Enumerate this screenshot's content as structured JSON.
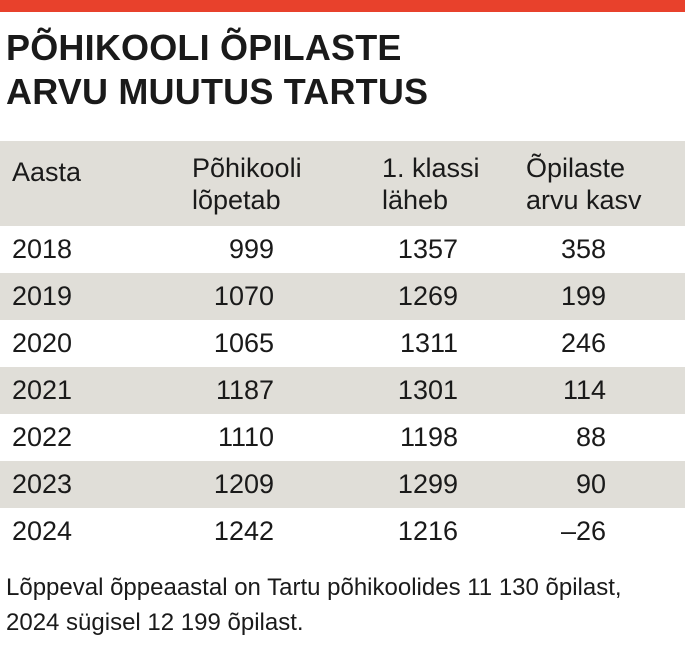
{
  "title": {
    "line1": "PÕHIKOOLI ÕPILASTE",
    "line2": "ARVU MUUTUS TARTUS"
  },
  "colors": {
    "accent_bar": "#e8412c",
    "row_shade": "#e0ded8"
  },
  "chart_data": {
    "type": "table",
    "columns": [
      {
        "line1": "Aasta",
        "line2": ""
      },
      {
        "line1": "Põhikooli",
        "line2": "lõpetab"
      },
      {
        "line1": "1. klassi",
        "line2": "läheb"
      },
      {
        "line1": "Õpilaste",
        "line2": "arvu kasv"
      }
    ],
    "rows": [
      {
        "year": "2018",
        "graduating": "999",
        "entering": "1357",
        "growth": "358"
      },
      {
        "year": "2019",
        "graduating": "1070",
        "entering": "1269",
        "growth": "199"
      },
      {
        "year": "2020",
        "graduating": "1065",
        "entering": "1311",
        "growth": "246"
      },
      {
        "year": "2021",
        "graduating": "1187",
        "entering": "1301",
        "growth": "114"
      },
      {
        "year": "2022",
        "graduating": "1110",
        "entering": "1198",
        "growth": "88"
      },
      {
        "year": "2023",
        "graduating": "1209",
        "entering": "1299",
        "growth": "90"
      },
      {
        "year": "2024",
        "graduating": "1242",
        "entering": "1216",
        "growth": "–26"
      }
    ]
  },
  "footnote": "Lõppeval õppeaastal on Tartu põhikoolides 11 130 õpilast, 2024 sügisel 12 199 õpilast."
}
